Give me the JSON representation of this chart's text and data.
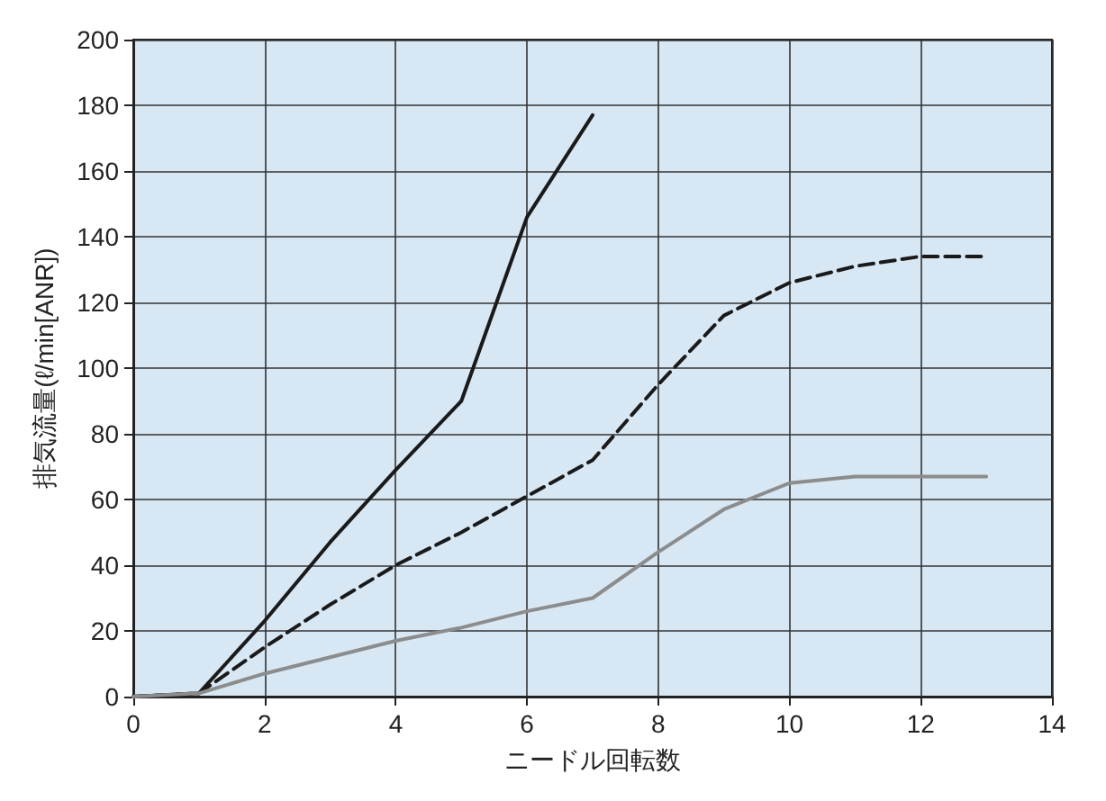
{
  "chart_data": {
    "type": "line",
    "xlabel": "ニードル回転数",
    "ylabel": "排気流量(ℓ/min[ANR])",
    "xlim": [
      0,
      14
    ],
    "xticks": [
      0,
      2,
      4,
      6,
      8,
      10,
      12,
      14
    ],
    "ylim": [
      0,
      200
    ],
    "yticks": [
      0,
      20,
      40,
      60,
      80,
      100,
      120,
      140,
      160,
      180,
      200
    ],
    "grid": true,
    "marker": "none",
    "series": [
      {
        "color": "#1a1a1a",
        "line_style": "solid",
        "x": [
          0,
          1,
          2,
          3,
          4,
          5,
          6,
          7
        ],
        "values": [
          0,
          1,
          23,
          47,
          69,
          90,
          146,
          177
        ]
      },
      {
        "color": "#1a1a1a",
        "line_style": "dashed",
        "x": [
          0,
          1,
          2,
          3,
          4,
          5,
          6,
          7,
          8,
          9,
          10,
          11,
          12,
          13
        ],
        "values": [
          0,
          1,
          15,
          28,
          40,
          50,
          61,
          72,
          95,
          116,
          126,
          131,
          134,
          134
        ]
      },
      {
        "color": "#8c8c8c",
        "line_style": "solid",
        "x": [
          0,
          1,
          2,
          3,
          4,
          5,
          6,
          7,
          8,
          9,
          10,
          11,
          12,
          13
        ],
        "values": [
          0,
          1,
          7,
          12,
          17,
          21,
          26,
          30,
          44,
          57,
          65,
          67,
          67,
          67
        ]
      }
    ]
  }
}
